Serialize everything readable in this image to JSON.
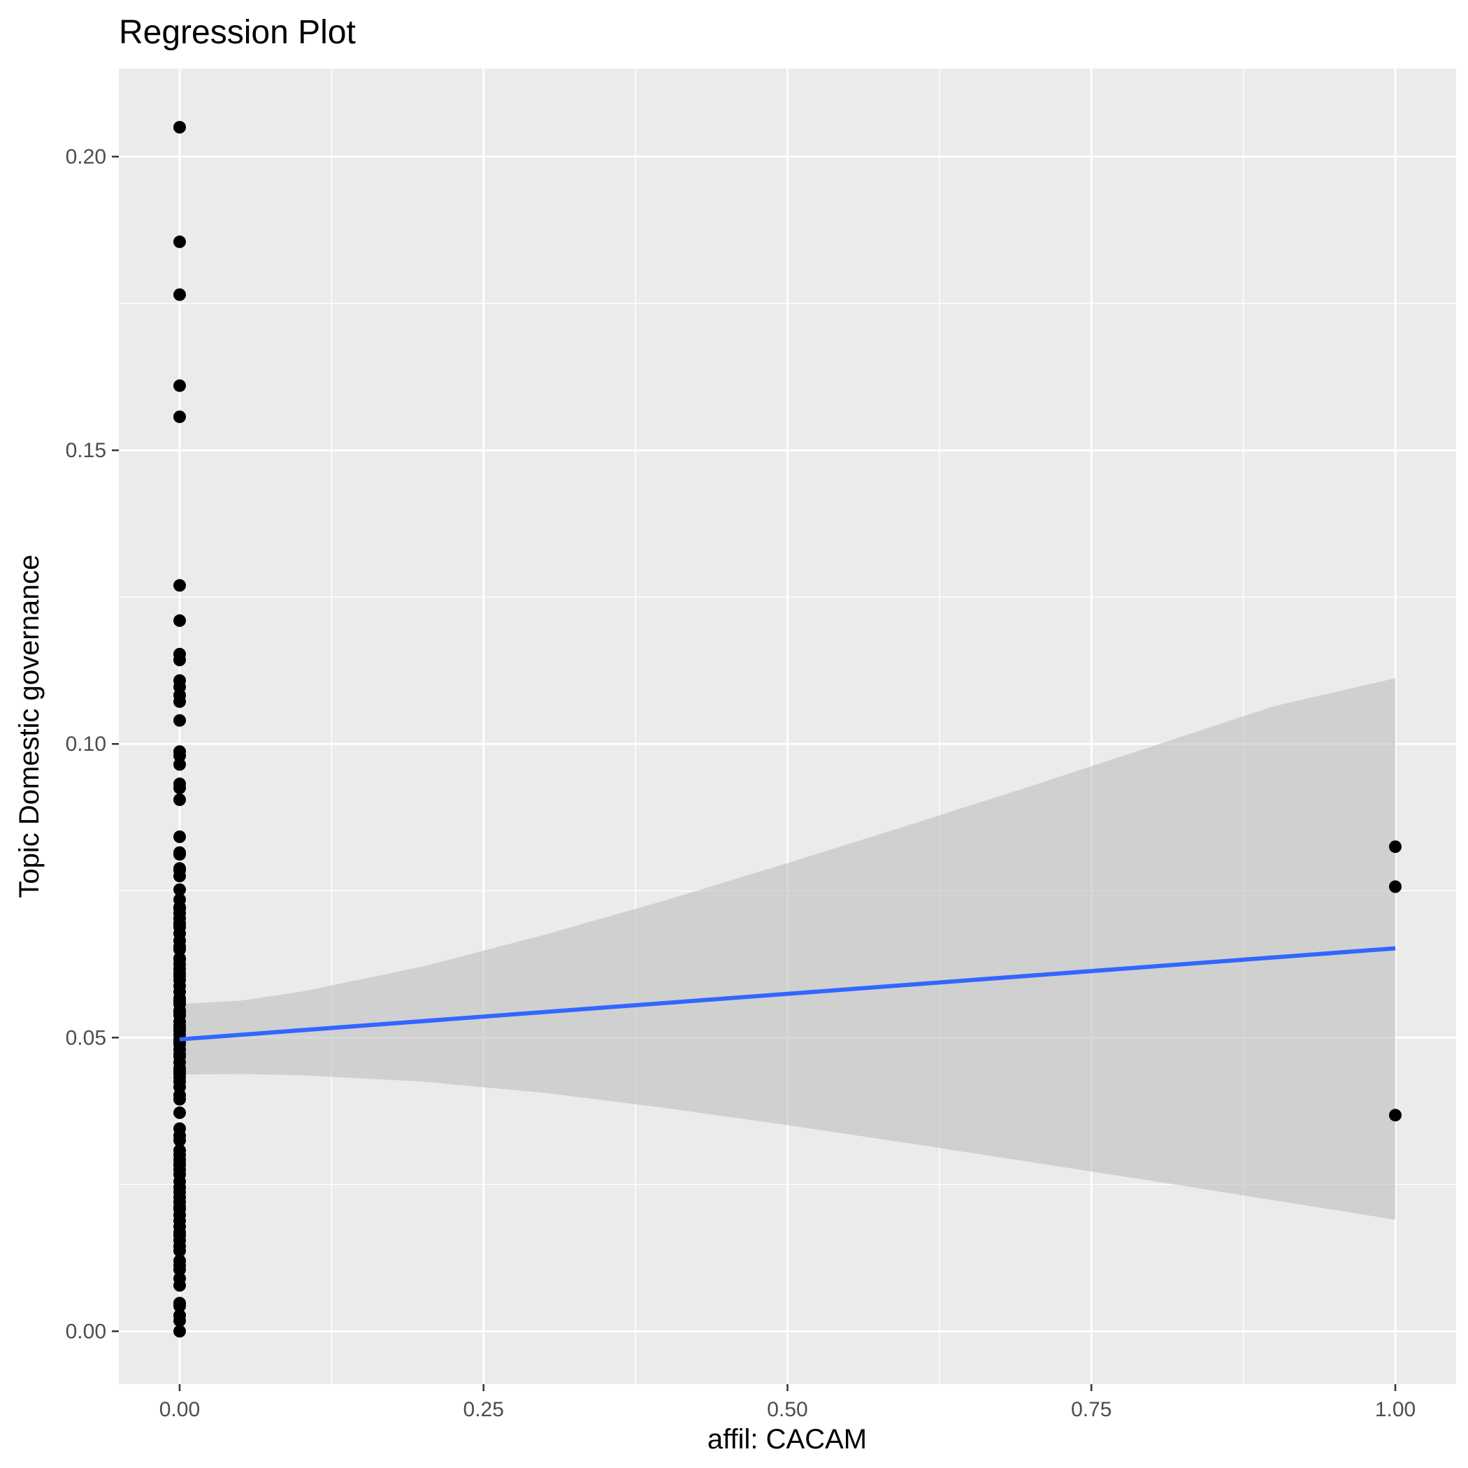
{
  "chart_data": {
    "type": "scatter",
    "title": "Regression Plot",
    "xlabel": "affil: CACAM",
    "ylabel": "Topic Domestic governance",
    "xlim": [
      -0.05,
      1.05
    ],
    "ylim": [
      -0.009,
      0.215
    ],
    "x_ticks": [
      0,
      0.25,
      0.5,
      0.75,
      1
    ],
    "x_tick_labels": [
      "0.00",
      "0.25",
      "0.50",
      "0.75",
      "1.00"
    ],
    "y_ticks": [
      0,
      0.05,
      0.1,
      0.15,
      0.2
    ],
    "y_tick_labels": [
      "0.00",
      "0.05",
      "0.10",
      "0.15",
      "0.20"
    ],
    "grid": true,
    "colors": {
      "panel": "#ebebeb",
      "grid": "#ffffff",
      "points": "#000000",
      "fit_line": "#3366ff",
      "ribbon": "#bebebe"
    },
    "points": {
      "x": [
        0,
        0,
        0,
        0,
        0,
        0,
        0,
        0,
        0,
        0,
        0,
        0,
        0,
        0,
        0,
        0,
        0,
        0,
        0,
        0,
        0,
        0,
        0,
        0,
        0,
        0,
        0,
        0,
        0,
        0,
        0,
        0,
        0,
        0,
        0,
        0,
        0,
        0,
        0,
        0,
        0,
        0,
        0,
        0,
        0,
        0,
        0,
        0,
        0,
        0,
        0,
        0,
        0,
        0,
        0,
        0,
        0,
        0,
        0,
        0,
        0,
        0,
        0,
        0,
        0,
        0,
        0,
        0,
        0,
        0,
        0,
        0,
        0,
        0,
        0,
        0,
        0,
        0,
        0,
        0,
        0,
        0,
        0,
        0,
        0,
        0,
        0,
        0,
        0,
        0,
        0,
        0,
        0,
        0,
        0,
        0,
        0,
        0,
        0,
        0,
        0,
        0,
        0,
        0,
        0,
        0,
        0,
        0,
        0,
        0,
        1,
        1,
        1
      ],
      "y": [
        0.205,
        0.1855,
        0.1765,
        0.161,
        0.1557,
        0.127,
        0.121,
        0.1153,
        0.1143,
        0.1108,
        0.1097,
        0.1083,
        0.1072,
        0.104,
        0.0987,
        0.098,
        0.0965,
        0.0932,
        0.0925,
        0.0905,
        0.0842,
        0.0812,
        0.0788,
        0.0775,
        0.0735,
        0.0722,
        0.0712,
        0.0703,
        0.0695,
        0.0688,
        0.0677,
        0.0665,
        0.0655,
        0.0633,
        0.0625,
        0.0617,
        0.061,
        0.0598,
        0.0588,
        0.0578,
        0.0567,
        0.0557,
        0.0546,
        0.0538,
        0.0527,
        0.052,
        0.0512,
        0.0505,
        0.0497,
        0.0489,
        0.048,
        0.0468,
        0.0458,
        0.0448,
        0.0438,
        0.0425,
        0.0416,
        0.0395,
        0.0333,
        0.0325,
        0.0308,
        0.03,
        0.0292,
        0.0283,
        0.0275,
        0.0267,
        0.0255,
        0.0245,
        0.0237,
        0.0228,
        0.022,
        0.0208,
        0.0198,
        0.0188,
        0.0178,
        0.0168,
        0.0155,
        0.0145,
        0.0137,
        0.012,
        0.0105,
        0.009,
        0.0078,
        0.0048,
        0.0027,
        0.0,
        0.0345,
        0.0372,
        0.0402,
        0.0432,
        0.0472,
        0.0515,
        0.0562,
        0.0605,
        0.065,
        0.0692,
        0.072,
        0.0752,
        0.0785,
        0.0815,
        0.0635,
        0.0542,
        0.0493,
        0.0443,
        0.0285,
        0.0212,
        0.0163,
        0.0112,
        0.0043,
        0.0018,
        0.0825,
        0.0757,
        0.0368
      ]
    },
    "fit": {
      "x": [
        0,
        1
      ],
      "y": [
        0.0497,
        0.0652
      ]
    },
    "ribbon": {
      "x": [
        0,
        0.05,
        0.1,
        0.2,
        0.3,
        0.4,
        0.5,
        0.6,
        0.7,
        0.8,
        0.9,
        1.0
      ],
      "lower": [
        0.0437,
        0.0438,
        0.0436,
        0.0425,
        0.0406,
        0.038,
        0.0351,
        0.032,
        0.0288,
        0.0256,
        0.0223,
        0.019
      ],
      "upper": [
        0.0557,
        0.0563,
        0.0578,
        0.0621,
        0.0675,
        0.0734,
        0.0797,
        0.0862,
        0.0928,
        0.0996,
        0.1064,
        0.1112
      ]
    }
  }
}
